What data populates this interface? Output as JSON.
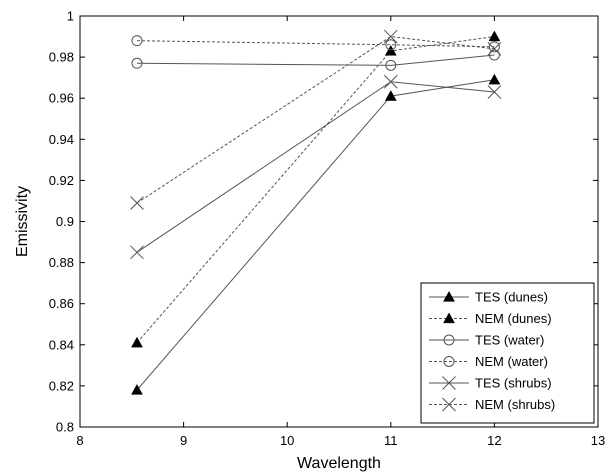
{
  "chart_data": {
    "type": "line",
    "title": "",
    "xlabel": "Wavelength",
    "ylabel": "Emissivity",
    "xlim": [
      8,
      13
    ],
    "ylim": [
      0.8,
      1
    ],
    "xticks": [
      8,
      9,
      10,
      11,
      12,
      13
    ],
    "yticks": [
      0.8,
      0.82,
      0.84,
      0.86,
      0.88,
      0.9,
      0.92,
      0.94,
      0.96,
      0.98,
      1
    ],
    "xtick_labels": [
      "8",
      "9",
      "10",
      "11",
      "12",
      "13"
    ],
    "ytick_labels": [
      "0.8",
      "0.82",
      "0.84",
      "0.86",
      "0.88",
      "0.9",
      "0.92",
      "0.94",
      "0.96",
      "0.98",
      "1"
    ],
    "grid": false,
    "legend_position": "bottom-right",
    "series": [
      {
        "name": "TES (dunes)",
        "marker": "triangle",
        "linestyle": "solid",
        "x": [
          8.55,
          11.0,
          12.0
        ],
        "y": [
          0.818,
          0.961,
          0.969
        ]
      },
      {
        "name": "NEM (dunes)",
        "marker": "triangle",
        "linestyle": "dashed",
        "x": [
          8.55,
          11.0,
          12.0
        ],
        "y": [
          0.841,
          0.983,
          0.99
        ]
      },
      {
        "name": "TES (water)",
        "marker": "circle",
        "linestyle": "solid",
        "x": [
          8.55,
          11.0,
          12.0
        ],
        "y": [
          0.977,
          0.976,
          0.981
        ]
      },
      {
        "name": "NEM (water)",
        "marker": "circle",
        "linestyle": "dashed",
        "x": [
          8.55,
          11.0,
          12.0
        ],
        "y": [
          0.988,
          0.986,
          0.985
        ]
      },
      {
        "name": "TES (shrubs)",
        "marker": "x",
        "linestyle": "solid",
        "x": [
          8.55,
          11.0,
          12.0
        ],
        "y": [
          0.885,
          0.968,
          0.963
        ]
      },
      {
        "name": "NEM (shrubs)",
        "marker": "x",
        "linestyle": "dashed",
        "x": [
          8.55,
          11.0,
          12.0
        ],
        "y": [
          0.909,
          0.99,
          0.984
        ]
      }
    ]
  }
}
